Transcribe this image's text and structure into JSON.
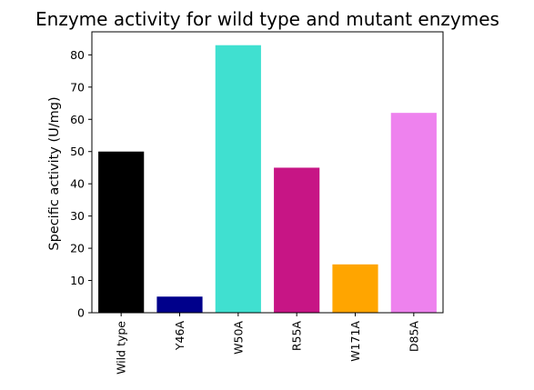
{
  "chart_data": {
    "type": "bar",
    "title": "Enzyme activity for wild type and mutant enzymes",
    "xlabel": "",
    "ylabel": "Specific activity (U/mg)",
    "categories": [
      "Wild type",
      "Y46A",
      "W50A",
      "R55A",
      "W171A",
      "D85A"
    ],
    "values": [
      50,
      5,
      83,
      45,
      15,
      62
    ],
    "bar_colors": [
      "#000000",
      "#00008b",
      "#40e0d0",
      "#c71585",
      "#ffa500",
      "#ee82ee"
    ],
    "ylim": [
      0,
      87.15
    ],
    "yticks": [
      "0",
      "10",
      "20",
      "30",
      "40",
      "50",
      "60",
      "70",
      "80"
    ],
    "grid": false,
    "legend": "none"
  }
}
